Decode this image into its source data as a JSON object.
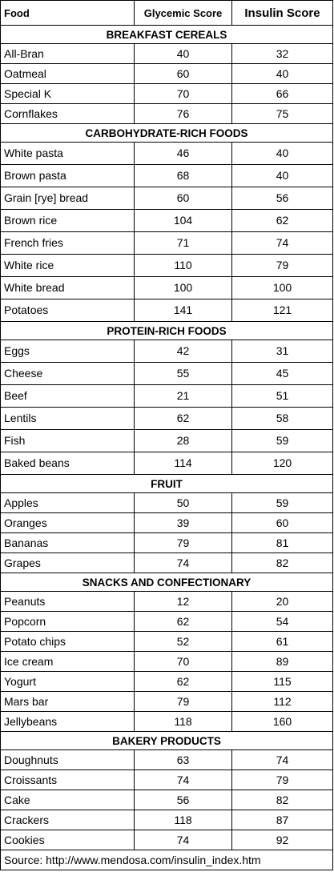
{
  "headers": {
    "food": "Food",
    "glycemic": "Glycemic Score",
    "insulin": "Insulin Score"
  },
  "sections": [
    {
      "title": "BREAKFAST CEREALS",
      "rows": [
        {
          "food": "All-Bran",
          "glycemic": "40",
          "insulin": "32"
        },
        {
          "food": "Oatmeal",
          "glycemic": "60",
          "insulin": "40"
        },
        {
          "food": "Special K",
          "glycemic": "70",
          "insulin": "66"
        },
        {
          "food": "Cornflakes",
          "glycemic": "76",
          "insulin": "75"
        }
      ]
    },
    {
      "title": "CARBOHYDRATE-RICH FOODS",
      "rows": [
        {
          "food": "White pasta",
          "glycemic": "46",
          "insulin": "40"
        },
        {
          "food": "Brown pasta",
          "glycemic": "68",
          "insulin": "40"
        },
        {
          "food": "Grain [rye] bread",
          "glycemic": "60",
          "insulin": "56"
        },
        {
          "food": "Brown rice",
          "glycemic": "104",
          "insulin": "62"
        },
        {
          "food": "French fries",
          "glycemic": "71",
          "insulin": "74"
        },
        {
          "food": "White rice",
          "glycemic": "110",
          "insulin": "79"
        },
        {
          "food": "White bread",
          "glycemic": "100",
          "insulin": "100"
        },
        {
          "food": "Potatoes",
          "glycemic": "141",
          "insulin": "121"
        }
      ]
    },
    {
      "title": "PROTEIN-RICH FOODS",
      "rows": [
        {
          "food": "Eggs",
          "glycemic": "42",
          "insulin": "31"
        },
        {
          "food": "Cheese",
          "glycemic": "55",
          "insulin": "45"
        },
        {
          "food": "Beef",
          "glycemic": "21",
          "insulin": "51"
        },
        {
          "food": "Lentils",
          "glycemic": "62",
          "insulin": "58"
        },
        {
          "food": "Fish",
          "glycemic": "28",
          "insulin": "59"
        },
        {
          "food": "Baked beans",
          "glycemic": "114",
          "insulin": "120"
        }
      ]
    },
    {
      "title": "FRUIT",
      "rows": [
        {
          "food": "Apples",
          "glycemic": "50",
          "insulin": "59"
        },
        {
          "food": "Oranges",
          "glycemic": "39",
          "insulin": "60"
        },
        {
          "food": "Bananas",
          "glycemic": "79",
          "insulin": "81"
        },
        {
          "food": "Grapes",
          "glycemic": "74",
          "insulin": "82"
        }
      ]
    },
    {
      "title": "SNACKS AND CONFECTIONARY",
      "rows": [
        {
          "food": "Peanuts",
          "glycemic": "12",
          "insulin": "20"
        },
        {
          "food": "Popcorn",
          "glycemic": "62",
          "insulin": "54"
        },
        {
          "food": "Potato chips",
          "glycemic": "52",
          "insulin": "61"
        },
        {
          "food": "Ice cream",
          "glycemic": "70",
          "insulin": "89"
        },
        {
          "food": "Yogurt",
          "glycemic": "62",
          "insulin": "115"
        },
        {
          "food": "Mars bar",
          "glycemic": "79",
          "insulin": "112"
        },
        {
          "food": "Jellybeans",
          "glycemic": "118",
          "insulin": "160"
        }
      ]
    },
    {
      "title": "BAKERY PRODUCTS",
      "rows": [
        {
          "food": "Doughnuts",
          "glycemic": "63",
          "insulin": "74"
        },
        {
          "food": "Croissants",
          "glycemic": "74",
          "insulin": "79"
        },
        {
          "food": "Cake",
          "glycemic": "56",
          "insulin": "82"
        },
        {
          "food": "Crackers",
          "glycemic": "118",
          "insulin": "87"
        },
        {
          "food": "Cookies",
          "glycemic": "74",
          "insulin": "92"
        }
      ]
    }
  ],
  "source": "Source: http://www.mendosa.com/insulin_index.htm"
}
